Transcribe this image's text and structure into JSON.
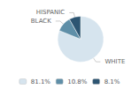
{
  "chart_data": {
    "type": "pie",
    "categories": [
      "WHITE",
      "BLACK",
      "HISPANIC"
    ],
    "values": [
      81.1,
      10.8,
      8.1
    ],
    "colors": [
      "#d6e4ee",
      "#5f8fa8",
      "#2d5572"
    ],
    "legend_labels": [
      "81.1%",
      "10.8%",
      "8.1%"
    ],
    "legend": "bottom"
  }
}
